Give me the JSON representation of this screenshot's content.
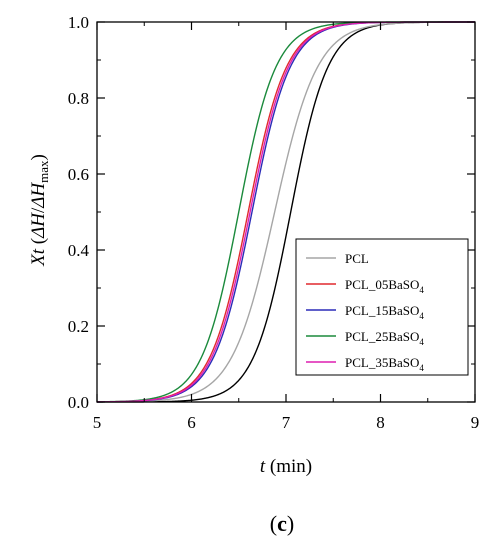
{
  "chart_data": {
    "type": "line",
    "title": "",
    "xlabel": {
      "var": "t",
      "unit": " (min)"
    },
    "ylabel": {
      "var": "Xt",
      "paren_open": " (",
      "dH": "ΔH",
      "slash": "/",
      "dHmax": "ΔH",
      "max": "max",
      "paren_close": ")"
    },
    "xlim": [
      5,
      9
    ],
    "ylim": [
      0,
      1
    ],
    "xticks": [
      "5",
      "6",
      "7",
      "8",
      "9"
    ],
    "yticks": [
      "0.0",
      "0.2",
      "0.4",
      "0.6",
      "0.8",
      "1.0"
    ],
    "grid": false,
    "legend_position": "right-middle",
    "panel_label": {
      "open": "(",
      "letter": "c",
      "close": ")"
    },
    "series": [
      {
        "name": "PCL",
        "color": "#a6a6a6",
        "t_half": 6.88,
        "k": 4.42,
        "label": {
          "base": "PCL",
          "sub": ""
        }
      },
      {
        "name": "PCL_05BaSO4",
        "color": "#e0292f",
        "t_half": 6.6,
        "k": 4.95,
        "label": {
          "base": "PCL_05BaSO",
          "sub": "4"
        }
      },
      {
        "name": "PCL_15BaSO4",
        "color": "#2b2bb8",
        "t_half": 6.64,
        "k": 4.95,
        "label": {
          "base": "PCL_15BaSO",
          "sub": "4"
        }
      },
      {
        "name": "PCL_25BaSO4",
        "color": "#1b8a3c",
        "t_half": 6.5,
        "k": 5.1,
        "label": {
          "base": "PCL_25BaSO",
          "sub": "4"
        }
      },
      {
        "name": "PCL_35BaSO4",
        "color": "#de1fb1",
        "t_half": 6.62,
        "k": 4.95,
        "label": {
          "base": "PCL_35BaSO",
          "sub": "4"
        }
      }
    ],
    "extra_curves": [
      {
        "note": "black curve drawn behind the PCL legend entry",
        "color": "#000000",
        "t_half": 7.05,
        "k": 5.1
      }
    ]
  }
}
